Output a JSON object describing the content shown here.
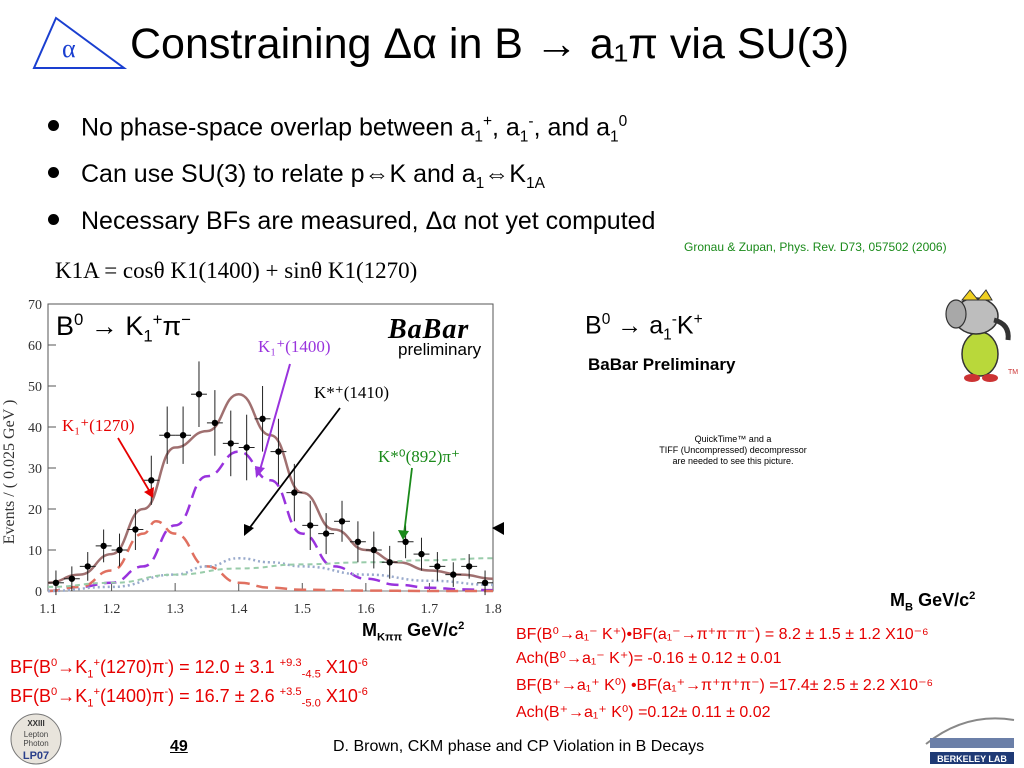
{
  "slide": {
    "alpha_logo": "α",
    "title": "Constraining Δα in B → a₁π via SU(3)",
    "bullets": [
      {
        "a": "No phase-space overlap between a",
        "s1": "1",
        "p1": "+",
        "b": ", a",
        "s2": "1",
        "p2": "-",
        "c": ", and a",
        "s3": "1",
        "p3": "0"
      },
      {
        "a": "Can use SU(3) to relate p",
        "arrow1": "⇔",
        "b": "K and a",
        "s1": "1",
        "arrow2": "⇔",
        "c": "K",
        "s2": "1A"
      },
      {
        "a": "Necessary BFs are measured, Δα not yet computed"
      }
    ],
    "reference": "Gronau & Zupan, Phys. Rev. D73, 057502 (2006)",
    "equation": "K1A = cosθ K1(1400) + sinθ K1(1270)",
    "plot_label": {
      "a": "B",
      "p1": "0",
      "b": " → K",
      "s1": "1",
      "p2": "+",
      "c": "π",
      "p3": "−"
    },
    "babar_logo": "BaBar",
    "babar_sub": "preliminary",
    "right_title": {
      "a": "B",
      "p1": "0",
      "b": " → a",
      "s1": "1",
      "p2": "-",
      "c": "K",
      "p3": "+"
    },
    "right_prelim": "BaBar Preliminary",
    "quicktime": [
      "QuickTime™ and a",
      "TIFF (Uncompressed) decompressor",
      "are needed to see this picture."
    ],
    "mb_label": {
      "a": "M",
      "s": "B",
      "b": " GeV/c",
      "p": "2"
    },
    "mk_label": {
      "a": "M",
      "s": "Kππ",
      "b": " GeV/c",
      "p": "2"
    },
    "bf_left": [
      {
        "a": "BF(B",
        "p1": "0",
        "arrow": "→",
        "b": "K",
        "s1": "1",
        "p2": "+",
        "c": "(1270)π",
        "p3": "-",
        "d": ") = 12.0 ± 3.1 ",
        "up": "+9.3",
        "dn": "-4.5",
        "e": " X10",
        "p4": "-6"
      },
      {
        "a": "BF(B",
        "p1": "0",
        "arrow": "→",
        "b": "K",
        "s1": "1",
        "p2": "+",
        "c": "(1400)π",
        "p3": "-",
        "d": ") = 16.7 ± 2.6 ",
        "up": "+3.5",
        "dn": "-5.0",
        "e": " X10",
        "p4": "-6"
      }
    ],
    "results": [
      "BF(B⁰→a₁⁻ K⁺)•BF(a₁⁻→π⁺π⁻π⁻) = 8.2 ± 1.5 ± 1.2 X10⁻⁶",
      "Ach(B⁰→a₁⁻ K⁺)= -0.16 ± 0.12 ± 0.01",
      "BF(B⁺→a₁⁺ K⁰) •BF(a₁⁺→π⁺π⁺π⁻) =17.4± 2.5 ± 2.2 X10⁻⁶",
      "Ach(B⁺→a₁⁺ K⁰) =0.12± 0.11 ± 0.02"
    ],
    "footer_page": "49",
    "footer_text": "D. Brown, CKM phase and CP Violation in B Decays",
    "conf_logo": [
      "XXIII",
      "Lepton",
      "Photon",
      "LP07"
    ],
    "berkeley_logo": "BERKELEY LAB",
    "colors": {
      "title": "#000000",
      "results": "#e60000",
      "reference": "#1a8a1a",
      "total_fit": "#a07070",
      "k1_1400": "#9933dd",
      "k1_1270": "#e07060",
      "kstar": "#99ccaa",
      "k1410": "#99aacc"
    }
  },
  "chart_data": {
    "type": "scatter",
    "ylabel": "Events / ( 0.025 GeV )",
    "xlim": [
      1.1,
      1.8
    ],
    "ylim": [
      0,
      70
    ],
    "x_ticks": [
      1.1,
      1.2,
      1.3,
      1.4,
      1.5,
      1.6,
      1.7,
      1.8
    ],
    "x_tick_labels": [
      "1.1",
      "1.2",
      "1.3",
      "1.4",
      "1.5",
      "1.6",
      "1.7",
      "1.8"
    ],
    "y_ticks": [
      0,
      10,
      20,
      30,
      40,
      50,
      60,
      70
    ],
    "y_tick_labels": [
      "0",
      "10",
      "20",
      "30",
      "40",
      "50",
      "60",
      "70"
    ],
    "points": [
      {
        "x": 1.1125,
        "y": 2,
        "e": 3
      },
      {
        "x": 1.1375,
        "y": 3,
        "e": 3
      },
      {
        "x": 1.1625,
        "y": 6,
        "e": 3.5
      },
      {
        "x": 1.1875,
        "y": 11,
        "e": 4
      },
      {
        "x": 1.2125,
        "y": 10,
        "e": 4
      },
      {
        "x": 1.2375,
        "y": 15,
        "e": 5
      },
      {
        "x": 1.2625,
        "y": 27,
        "e": 6
      },
      {
        "x": 1.2875,
        "y": 38,
        "e": 7
      },
      {
        "x": 1.3125,
        "y": 38,
        "e": 7
      },
      {
        "x": 1.3375,
        "y": 48,
        "e": 8
      },
      {
        "x": 1.3625,
        "y": 41,
        "e": 8
      },
      {
        "x": 1.3875,
        "y": 36,
        "e": 8
      },
      {
        "x": 1.4125,
        "y": 35,
        "e": 8
      },
      {
        "x": 1.4375,
        "y": 42,
        "e": 8
      },
      {
        "x": 1.4625,
        "y": 34,
        "e": 8
      },
      {
        "x": 1.4875,
        "y": 24,
        "e": 7
      },
      {
        "x": 1.5125,
        "y": 16,
        "e": 6
      },
      {
        "x": 1.5375,
        "y": 14,
        "e": 5
      },
      {
        "x": 1.5625,
        "y": 17,
        "e": 5
      },
      {
        "x": 1.5875,
        "y": 12,
        "e": 5
      },
      {
        "x": 1.6125,
        "y": 10,
        "e": 4.5
      },
      {
        "x": 1.6375,
        "y": 7,
        "e": 4
      },
      {
        "x": 1.6625,
        "y": 12,
        "e": 4
      },
      {
        "x": 1.6875,
        "y": 9,
        "e": 4
      },
      {
        "x": 1.7125,
        "y": 6,
        "e": 3.5
      },
      {
        "x": 1.7375,
        "y": 4,
        "e": 3
      },
      {
        "x": 1.7625,
        "y": 6,
        "e": 3
      },
      {
        "x": 1.7875,
        "y": 2,
        "e": 3
      }
    ],
    "curves": [
      {
        "name": "total",
        "x": [
          1.1,
          1.15,
          1.2,
          1.25,
          1.3,
          1.35,
          1.4,
          1.45,
          1.5,
          1.55,
          1.6,
          1.65,
          1.7,
          1.75,
          1.8
        ],
        "y": [
          2,
          4,
          9,
          20,
          35,
          39,
          48,
          38,
          24,
          15,
          10,
          7,
          5,
          4,
          3
        ]
      },
      {
        "name": "K1+(1400)",
        "x": [
          1.1,
          1.15,
          1.2,
          1.25,
          1.3,
          1.35,
          1.4,
          1.45,
          1.5,
          1.55,
          1.6,
          1.65,
          1.7,
          1.75,
          1.8
        ],
        "y": [
          0,
          1,
          2,
          6,
          16,
          28,
          34,
          27,
          14,
          6,
          3,
          1.5,
          0.8,
          0.4,
          0.2
        ]
      },
      {
        "name": "K1+(1270)",
        "x": [
          1.1,
          1.15,
          1.2,
          1.25,
          1.27,
          1.3,
          1.35,
          1.4,
          1.45,
          1.5,
          1.6,
          1.7,
          1.8
        ],
        "y": [
          0,
          1,
          5,
          14,
          17,
          14,
          6,
          2,
          0.8,
          0.3,
          0.1,
          0,
          0
        ]
      },
      {
        "name": "K*+(1410)",
        "x": [
          1.1,
          1.2,
          1.3,
          1.35,
          1.4,
          1.45,
          1.5,
          1.6,
          1.7,
          1.8
        ],
        "y": [
          0,
          1,
          4,
          6,
          8,
          7,
          6,
          4,
          2.5,
          1.5
        ]
      },
      {
        "name": "K*0(892)π+",
        "x": [
          1.1,
          1.2,
          1.3,
          1.4,
          1.5,
          1.6,
          1.7,
          1.8
        ],
        "y": [
          1,
          2,
          4,
          5.5,
          6.5,
          7,
          7.5,
          8
        ]
      }
    ],
    "annotations": [
      "K₁⁺(1400)",
      "K*⁺(1410)",
      "K₁⁺(1270)",
      "K*⁰(892)π⁺"
    ]
  }
}
